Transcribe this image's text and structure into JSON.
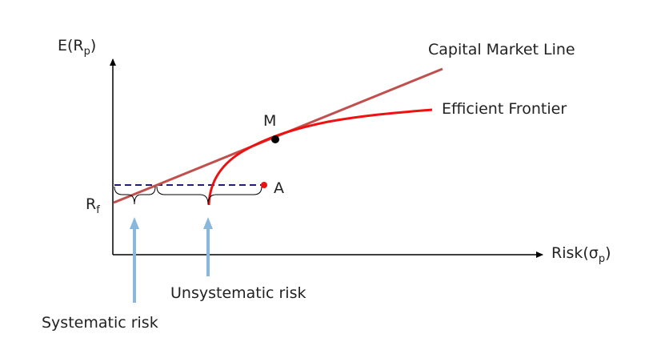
{
  "axes": {
    "y_label_main": "E(R",
    "y_label_sub": "p",
    "y_label_close": ")",
    "x_label_main": "Risk(σ",
    "x_label_sub": "p",
    "x_label_close": ")"
  },
  "labels": {
    "rf_main": "R",
    "rf_sub": "f",
    "cml": "Capital Market Line",
    "frontier": "Efficient Frontier",
    "point_m": "M",
    "point_a": "A",
    "systematic": "Systematic risk",
    "unsystematic": "Unsystematic risk"
  },
  "colors": {
    "cml": "#c0504d",
    "frontier": "#ee1111",
    "dashed": "#1f1f7a",
    "arrow": "#8ab8dd",
    "axis": "#000000"
  }
}
